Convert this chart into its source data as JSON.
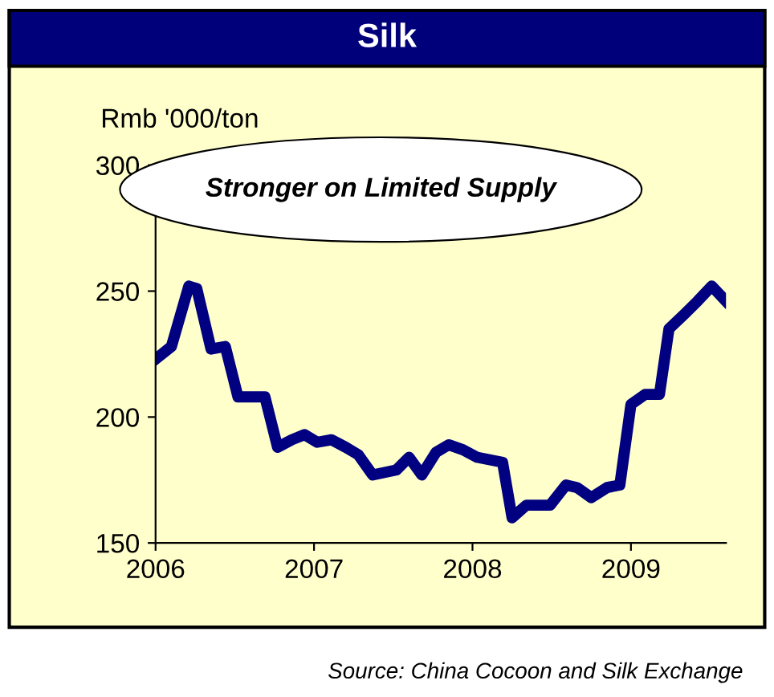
{
  "chart_data": {
    "type": "line",
    "title": "Silk",
    "ylabel": "Rmb '000/ton",
    "x": [
      2006.0,
      2006.1,
      2006.21,
      2006.26,
      2006.35,
      2006.44,
      2006.52,
      2006.69,
      2006.77,
      2006.86,
      2006.94,
      2007.02,
      2007.11,
      2007.2,
      2007.28,
      2007.37,
      2007.52,
      2007.6,
      2007.68,
      2007.77,
      2007.85,
      2007.94,
      2008.03,
      2008.19,
      2008.25,
      2008.34,
      2008.49,
      2008.59,
      2008.66,
      2008.75,
      2008.85,
      2008.93,
      2009.0,
      2009.09,
      2009.18,
      2009.24,
      2009.34,
      2009.42,
      2009.51,
      2009.6
    ],
    "series": [
      {
        "color": "#000080",
        "values": [
          223,
          228,
          252,
          251,
          227,
          228,
          208,
          208,
          188,
          191,
          193,
          190,
          191,
          188,
          185,
          177,
          179,
          184,
          177,
          186,
          189,
          187,
          184,
          182,
          160,
          165,
          165,
          173,
          172,
          168,
          172,
          173,
          205,
          209,
          209,
          235,
          241,
          246,
          252,
          246
        ]
      }
    ],
    "xlim": [
      2006,
      2009.6
    ],
    "xticks": [
      2006,
      2007,
      2008,
      2009
    ],
    "ylim": [
      150,
      300
    ],
    "yticks": [
      150,
      200,
      250,
      300
    ],
    "grid": false,
    "marker": "none",
    "line_style": "solid",
    "legend": false,
    "annotations": [
      "Stronger on Limited Supply",
      "Source: China Cocoon and Silk Exchange"
    ]
  }
}
